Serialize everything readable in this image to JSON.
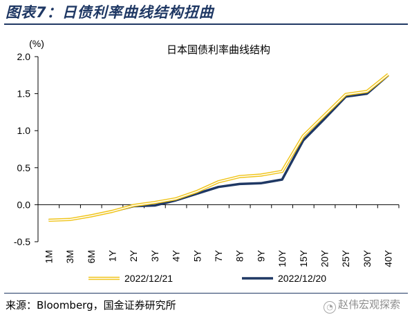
{
  "figure": {
    "title": "图表7：日债利率曲线结构扭曲",
    "source": "来源：Bloomberg，国金证券研究所",
    "watermark": "赵伟宏观探索"
  },
  "chart_data": {
    "type": "line",
    "title": "日本国债利率曲线结构",
    "ylabel": "(%)",
    "xlabel": "",
    "ylim": [
      -0.5,
      2.0
    ],
    "yticks": [
      -0.5,
      0.0,
      0.5,
      1.0,
      1.5,
      2.0
    ],
    "ytick_labels": [
      "-0.5",
      "0.0",
      "0.5",
      "1.0",
      "1.5",
      "2.0"
    ],
    "grid": false,
    "legend_position": "bottom",
    "categories": [
      "1M",
      "3M",
      "6M",
      "1Y",
      "2Y",
      "3Y",
      "4Y",
      "5Y",
      "7Y",
      "8Y",
      "9Y",
      "10Y",
      "15Y",
      "20Y",
      "25Y",
      "30Y",
      "40Y"
    ],
    "series": [
      {
        "name": "2022/12/21",
        "color": "#f0c419",
        "style": "double",
        "values": [
          -0.21,
          -0.2,
          -0.15,
          -0.09,
          -0.01,
          0.03,
          0.08,
          0.18,
          0.31,
          0.38,
          0.4,
          0.45,
          0.93,
          1.21,
          1.49,
          1.53,
          1.76
        ]
      },
      {
        "name": "2022/12/20",
        "color": "#1f3864",
        "style": "solid",
        "values": [
          -0.21,
          -0.2,
          -0.15,
          -0.09,
          -0.02,
          -0.01,
          0.06,
          0.15,
          0.24,
          0.28,
          0.29,
          0.34,
          0.87,
          1.16,
          1.46,
          1.5,
          1.75
        ]
      }
    ]
  }
}
